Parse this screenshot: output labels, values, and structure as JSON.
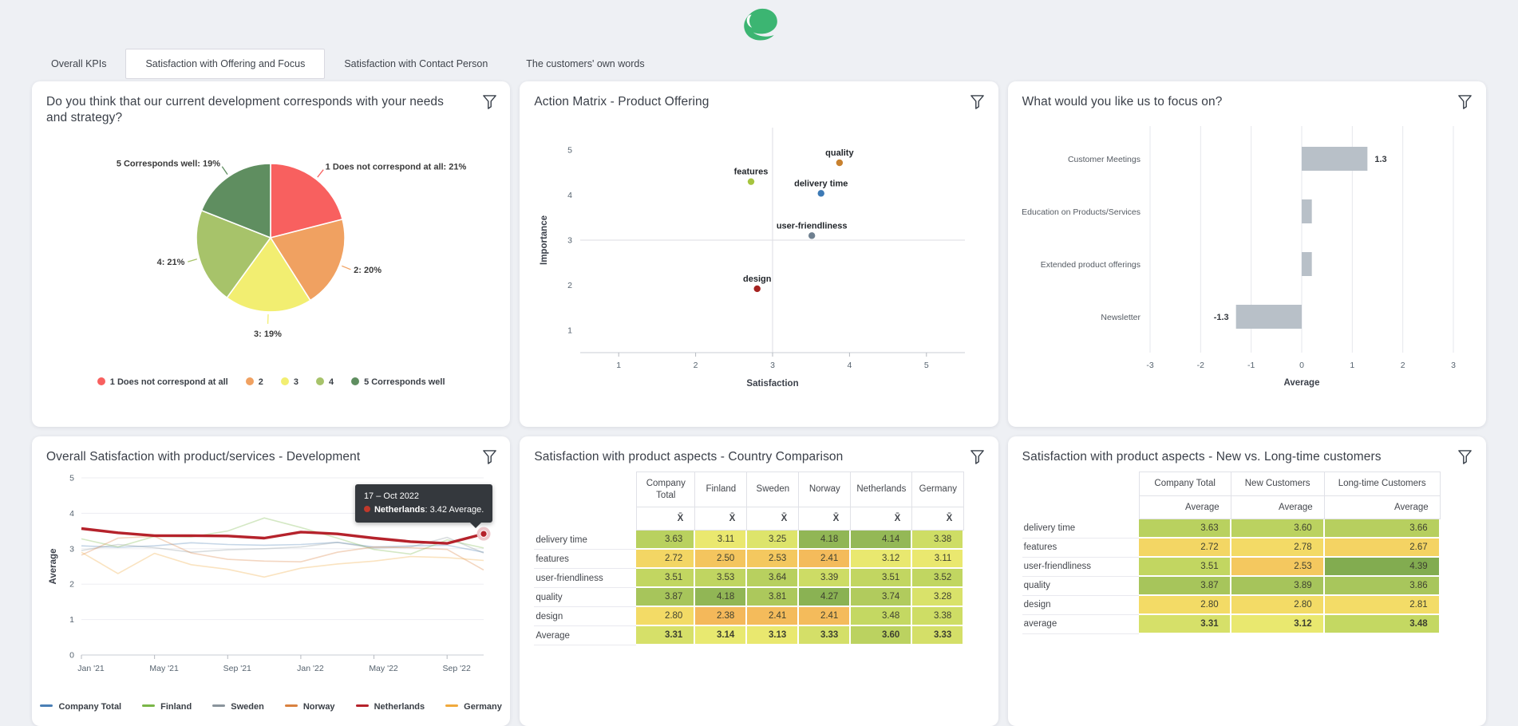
{
  "brand": {
    "logo_name": "speech-bubble-logo",
    "logo_color": "#3cb572"
  },
  "tabs": [
    {
      "label": "Overall KPIs",
      "active": false
    },
    {
      "label": "Satisfaction with Offering and Focus",
      "active": true
    },
    {
      "label": "Satisfaction with Contact Person",
      "active": false
    },
    {
      "label": "The customers' own words",
      "active": false
    }
  ],
  "panels": {
    "pie": {
      "title": "Do you think that our current development corresponds with your needs and strategy?"
    },
    "scatter": {
      "title": "Action Matrix - Product Offering"
    },
    "focus": {
      "title": "What would you like us to focus on?"
    },
    "line": {
      "title": "Overall Satisfaction with product/services - Development"
    },
    "country": {
      "title": "Satisfaction with product aspects - Country Comparison"
    },
    "newlong": {
      "title": "Satisfaction with product aspects - New vs. Long-time customers"
    }
  },
  "heatmap_stops": [
    [
      2.3,
      "#f4b058"
    ],
    [
      2.6,
      "#f4cf61"
    ],
    [
      2.9,
      "#f2e169"
    ],
    [
      3.15,
      "#e8e970"
    ],
    [
      3.45,
      "#c6d962"
    ],
    [
      3.9,
      "#a5c45b"
    ],
    [
      4.5,
      "#7aa74e"
    ]
  ],
  "chart_data": [
    {
      "id": "pie",
      "type": "pie",
      "labels": [
        "1 Does not correspond at all",
        "2",
        "3",
        "4",
        "5 Corresponds well"
      ],
      "values": [
        21,
        20,
        19,
        21,
        19
      ],
      "colors": [
        "#f8605f",
        "#f0a161",
        "#f2ee71",
        "#a7c36a",
        "#5f8e60"
      ],
      "callouts": [
        "1 Does not correspond at all: 21%",
        "2: 20%",
        "3: 19%",
        "4: 21%",
        "5 Corresponds well: 19%"
      ],
      "legend": [
        "1 Does not correspond at all",
        "2",
        "3",
        "4",
        "5 Corresponds well"
      ]
    },
    {
      "id": "scatter",
      "type": "scatter",
      "xlabel": "Satisfaction",
      "ylabel": "Importance",
      "xlim": [
        0.5,
        5.5
      ],
      "ylim": [
        0.5,
        5.5
      ],
      "xticks": [
        1,
        2,
        3,
        4,
        5
      ],
      "yticks": [
        1,
        2,
        3,
        4,
        5
      ],
      "crosshair": [
        3,
        3
      ],
      "points": [
        {
          "label": "quality",
          "x": 3.87,
          "y": 4.72,
          "color": "#c8812f"
        },
        {
          "label": "features",
          "x": 2.72,
          "y": 4.3,
          "color": "#a6c43f"
        },
        {
          "label": "delivery time",
          "x": 3.63,
          "y": 4.04,
          "color": "#3d7ab5"
        },
        {
          "label": "user-friendliness",
          "x": 3.51,
          "y": 3.1,
          "color": "#6f8090"
        },
        {
          "label": "design",
          "x": 2.8,
          "y": 1.92,
          "color": "#a52220"
        }
      ]
    },
    {
      "id": "focus",
      "type": "bar",
      "orientation": "horizontal",
      "xlabel": "Average",
      "xlim": [
        -3,
        3
      ],
      "xticks": [
        -3,
        -2,
        -1,
        0,
        1,
        2,
        3
      ],
      "bar_color": "#b8c0c8",
      "categories": [
        "Customer Meetings",
        "Education on Products/Services",
        "Extended product offerings",
        "Newsletter"
      ],
      "values": [
        1.3,
        0.2,
        0.2,
        -1.3
      ],
      "value_labels": [
        "1.3",
        "",
        "",
        "-1.3"
      ]
    },
    {
      "id": "line",
      "type": "line",
      "ylabel": "Average",
      "ylim": [
        0,
        5
      ],
      "yticks": [
        0,
        1,
        2,
        3,
        4,
        5
      ],
      "x": [
        "Jan '21",
        "Mar '21",
        "May '21",
        "Jul '21",
        "Sep '21",
        "Nov '21",
        "Jan '22",
        "Mar '22",
        "May '22",
        "Jul '22",
        "Sep '22",
        "Oct '22"
      ],
      "xtick_indices": [
        0,
        2,
        4,
        6,
        8,
        10
      ],
      "xtick_labels": [
        "Jan '21",
        "May '21",
        "Sep '21",
        "Jan '22",
        "May '22",
        "Sep '22"
      ],
      "highlight": "Netherlands",
      "series": [
        {
          "name": "Company Total",
          "color": "#4a7fb5",
          "values": [
            3.08,
            3.04,
            3.08,
            3.17,
            3.12,
            3.1,
            3.12,
            3.18,
            3.05,
            3.08,
            3.1,
            2.9
          ]
        },
        {
          "name": "Finland",
          "color": "#7ab648",
          "values": [
            3.28,
            3.05,
            3.35,
            3.33,
            3.5,
            3.87,
            3.6,
            3.3,
            2.98,
            2.85,
            3.25,
            3.02
          ]
        },
        {
          "name": "Sweden",
          "color": "#8a949c",
          "values": [
            2.95,
            3.12,
            3.03,
            2.9,
            2.97,
            3.0,
            3.05,
            3.18,
            3.02,
            3.05,
            3.32,
            2.88
          ]
        },
        {
          "name": "Norway",
          "color": "#d9813f",
          "values": [
            2.82,
            3.3,
            3.35,
            2.88,
            2.7,
            2.65,
            2.63,
            2.9,
            3.05,
            3.03,
            2.98,
            2.4
          ]
        },
        {
          "name": "Netherlands",
          "color": "#b5222b",
          "values": [
            3.57,
            3.45,
            3.37,
            3.37,
            3.36,
            3.3,
            3.47,
            3.42,
            3.3,
            3.2,
            3.15,
            3.42
          ]
        },
        {
          "name": "Germany",
          "color": "#f0a93c",
          "values": [
            2.9,
            2.3,
            2.87,
            2.55,
            2.42,
            2.2,
            2.45,
            2.57,
            2.65,
            2.78,
            2.75,
            2.67
          ]
        }
      ],
      "tooltip": {
        "title": "17 – Oct 2022",
        "name": "Netherlands",
        "value": ": 3.42 Average.",
        "point_index": 11,
        "point_value": 3.42,
        "dot_color": "#c0392b"
      }
    },
    {
      "id": "country",
      "type": "table",
      "heatmap": true,
      "columns": [
        "Company Total",
        "Finland",
        "Sweden",
        "Norway",
        "Netherlands",
        "Germany"
      ],
      "stat_header": "X̄",
      "rows": [
        {
          "label": "delivery time",
          "values": [
            "3.63",
            "3.11",
            "3.25",
            "4.18",
            "4.14",
            "3.38"
          ],
          "bold": false
        },
        {
          "label": "features",
          "values": [
            "2.72",
            "2.50",
            "2.53",
            "2.41",
            "3.12",
            "3.11"
          ],
          "bold": false
        },
        {
          "label": "user-friendliness",
          "values": [
            "3.51",
            "3.53",
            "3.64",
            "3.39",
            "3.51",
            "3.52"
          ],
          "bold": false
        },
        {
          "label": "quality",
          "values": [
            "3.87",
            "4.18",
            "3.81",
            "4.27",
            "3.74",
            "3.28"
          ],
          "bold": false
        },
        {
          "label": "design",
          "values": [
            "2.80",
            "2.38",
            "2.41",
            "2.41",
            "3.48",
            "3.38"
          ],
          "bold": false
        },
        {
          "label": "Average",
          "values": [
            "3.31",
            "3.14",
            "3.13",
            "3.33",
            "3.60",
            "3.33"
          ],
          "bold": true
        }
      ]
    },
    {
      "id": "newlong",
      "type": "table",
      "heatmap": true,
      "columns": [
        "Company Total",
        "New Customers",
        "Long-time Customers"
      ],
      "stat_header": "Average",
      "rows": [
        {
          "label": "delivery time",
          "values": [
            "3.63",
            "3.60",
            "3.66"
          ],
          "bold": false
        },
        {
          "label": "features",
          "values": [
            "2.72",
            "2.78",
            "2.67"
          ],
          "bold": false
        },
        {
          "label": "user-friendliness",
          "values": [
            "3.51",
            "2.53",
            "4.39"
          ],
          "bold": false
        },
        {
          "label": "quality",
          "values": [
            "3.87",
            "3.89",
            "3.86"
          ],
          "bold": false
        },
        {
          "label": "design",
          "values": [
            "2.80",
            "2.80",
            "2.81"
          ],
          "bold": false
        },
        {
          "label": "average",
          "values": [
            "3.31",
            "3.12",
            "3.48"
          ],
          "bold": true
        }
      ]
    }
  ]
}
